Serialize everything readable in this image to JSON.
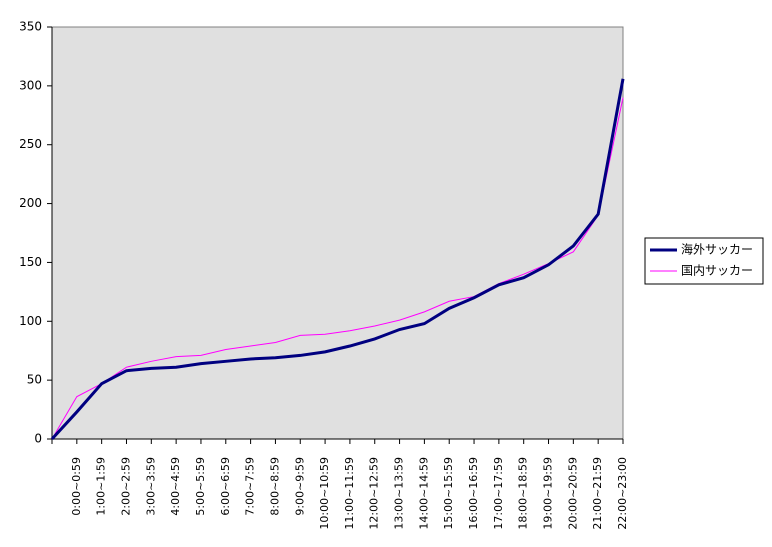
{
  "chart_data": {
    "type": "line",
    "categories": [
      null,
      "0:00~0:59",
      "1:00~1:59",
      "2:00~2:59",
      "3:00~3:59",
      "4:00~4:59",
      "5:00~5:59",
      "6:00~6:59",
      "7:00~7:59",
      "8:00~8:59",
      "9:00~9:59",
      "10:00~10:59",
      "11:00~11:59",
      "12:00~12:59",
      "13:00~13:59",
      "14:00~14:59",
      "15:00~15:59",
      "16:00~16:59",
      "17:00~17:59",
      "18:00~18:59",
      "19:00~19:59",
      "20:00~20:59",
      "21:00~21:59",
      "22:00~23:00"
    ],
    "series": [
      {
        "name": "海外サッカー",
        "color": "#000080",
        "values": [
          0,
          23,
          47,
          58,
          60,
          61,
          64,
          66,
          68,
          69,
          71,
          74,
          79,
          85,
          93,
          98,
          111,
          120,
          131,
          137,
          148,
          164,
          191,
          306
        ]
      },
      {
        "name": "国内サッカー",
        "color": "#ff00ff",
        "values": [
          0,
          36,
          47,
          61,
          66,
          70,
          71,
          76,
          79,
          82,
          88,
          89,
          92,
          96,
          101,
          108,
          117,
          121,
          132,
          140,
          149,
          159,
          190,
          290
        ]
      }
    ],
    "ylim": [
      0,
      350
    ],
    "yticks": [
      0,
      50,
      100,
      150,
      200,
      250,
      300,
      350
    ],
    "grid": false,
    "legend": "right",
    "background": "#e0e0e0"
  }
}
